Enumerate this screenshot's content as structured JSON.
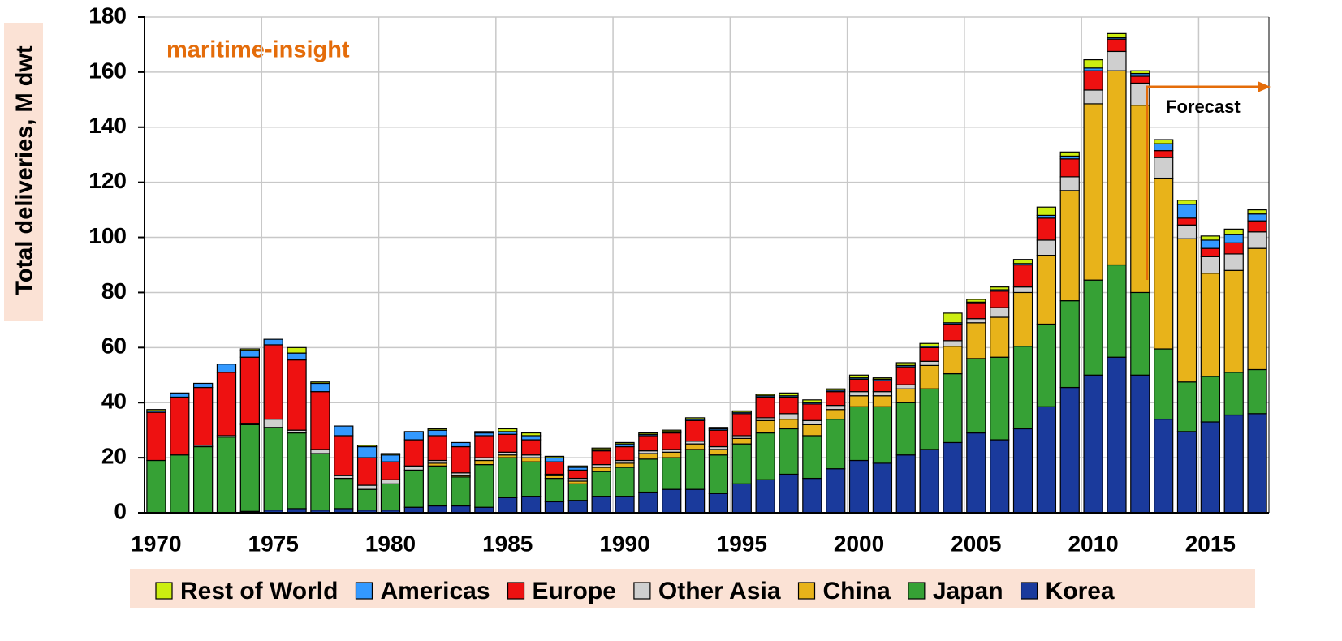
{
  "chart_data": {
    "type": "stacked_bar",
    "y_label": "Total deliveries, M dwt",
    "annotations": [
      "maritime-insight",
      "Forecast"
    ],
    "categories": [
      "1970",
      null,
      null,
      null,
      null,
      "1975",
      null,
      null,
      null,
      null,
      "1980",
      null,
      null,
      null,
      null,
      "1985",
      null,
      null,
      null,
      null,
      "1990",
      null,
      null,
      null,
      null,
      "1995",
      null,
      null,
      null,
      null,
      "2000",
      null,
      null,
      null,
      null,
      "2005",
      null,
      null,
      null,
      null,
      "2010",
      null,
      null,
      null,
      null,
      "2015",
      null,
      null
    ],
    "ylim": [
      0,
      180
    ],
    "yticks": [
      0,
      20,
      40,
      60,
      80,
      100,
      120,
      140,
      160,
      180
    ],
    "grid": true,
    "series": [
      {
        "name": "Korea",
        "color": "#1a3a9c",
        "values": [
          0,
          0,
          0,
          0,
          0.5,
          1,
          1.5,
          1,
          1.5,
          1,
          1,
          2,
          2.5,
          2.5,
          2,
          5.5,
          6,
          4,
          4.5,
          6,
          6,
          7.5,
          8.5,
          8.5,
          7,
          10.5,
          12,
          14,
          12.5,
          16,
          19,
          18,
          21,
          23,
          25.5,
          29,
          26.5,
          30.5,
          38.5,
          45.5,
          50,
          56.5,
          50,
          34,
          29.5,
          33,
          35.5,
          36
        ]
      },
      {
        "name": "Japan",
        "color": "#36a135",
        "values": [
          19,
          21,
          24,
          27.5,
          31.5,
          30,
          27.5,
          20.5,
          11,
          7.5,
          9.5,
          13.5,
          14.5,
          10.5,
          15.5,
          14.5,
          12.5,
          8.5,
          6,
          9,
          10.5,
          12,
          11.5,
          14.5,
          14,
          14.5,
          17,
          16.5,
          15.5,
          18,
          19.5,
          20.5,
          19,
          22,
          25,
          27,
          30,
          30,
          30,
          31.5,
          34.5,
          33.5,
          30,
          25.5,
          18,
          16.5,
          15.5,
          16
        ]
      },
      {
        "name": "China",
        "color": "#e8b31a",
        "values": [
          0,
          0,
          0,
          0,
          0,
          0,
          0,
          0,
          0,
          0,
          0,
          0,
          1,
          0.5,
          1.5,
          1,
          1.5,
          1,
          1,
          1.5,
          1.5,
          2,
          2,
          2,
          2,
          2,
          4.5,
          3.5,
          4,
          3.5,
          4,
          4,
          5,
          8.5,
          10,
          13,
          14.5,
          19.5,
          25,
          40,
          64,
          70.5,
          68,
          62,
          52,
          37.5,
          37,
          44
        ]
      },
      {
        "name": "Other Asia",
        "color": "#cfcfcf",
        "values": [
          0,
          0,
          0.5,
          0.5,
          0.5,
          3,
          1,
          1.5,
          1,
          1.5,
          1.5,
          1.5,
          1,
          1,
          1,
          1,
          1,
          0.5,
          1,
          1,
          1,
          1,
          1,
          1,
          1,
          1,
          1,
          2,
          1.5,
          1.5,
          1.5,
          1.5,
          1.5,
          1.5,
          2,
          1.5,
          3.5,
          2,
          5.5,
          5,
          5,
          7,
          8,
          7.5,
          5,
          6,
          6,
          6
        ]
      },
      {
        "name": "Europe",
        "color": "#ee1111",
        "values": [
          17.5,
          21,
          21,
          23,
          24,
          27,
          25.5,
          21,
          14.5,
          10,
          6.5,
          9.5,
          9,
          9.5,
          8,
          6.5,
          5.5,
          4.5,
          3,
          5,
          5,
          5.5,
          6,
          7.5,
          6,
          8,
          7.5,
          6,
          6,
          5,
          4.5,
          4,
          6.5,
          5,
          6,
          5.5,
          6,
          8,
          8,
          6.5,
          7,
          4.5,
          2.5,
          2.5,
          2.5,
          3,
          4,
          4
        ]
      },
      {
        "name": "Americas",
        "color": "#3399ff",
        "values": [
          0.5,
          1.5,
          1.5,
          3,
          2.5,
          2,
          2.5,
          3,
          3.5,
          4,
          2.5,
          3,
          2,
          1.5,
          1,
          1,
          1.5,
          1.5,
          1,
          0.5,
          1,
          0.5,
          0.5,
          0.5,
          0.5,
          0.5,
          0.5,
          0.5,
          0.5,
          0.5,
          0.5,
          0.5,
          0.5,
          0.5,
          0.5,
          0.5,
          0.5,
          0.5,
          1,
          1,
          1,
          0.5,
          1,
          2.5,
          5,
          3,
          3,
          2.5
        ]
      },
      {
        "name": "Rest of World",
        "color": "#ccee11",
        "values": [
          0.5,
          0,
          0,
          0,
          0.5,
          0,
          2,
          0.5,
          0,
          0.5,
          0.5,
          0,
          0.5,
          0,
          0.5,
          1,
          1,
          0.5,
          0.5,
          0.5,
          0.5,
          0.5,
          0.5,
          0.5,
          0.5,
          0.5,
          0.5,
          1,
          1,
          0.5,
          1,
          0.5,
          1,
          1,
          3.5,
          1,
          1,
          1.5,
          3,
          1.5,
          3,
          1.5,
          1,
          1.5,
          1.5,
          1.5,
          2,
          1.5
        ]
      }
    ]
  }
}
